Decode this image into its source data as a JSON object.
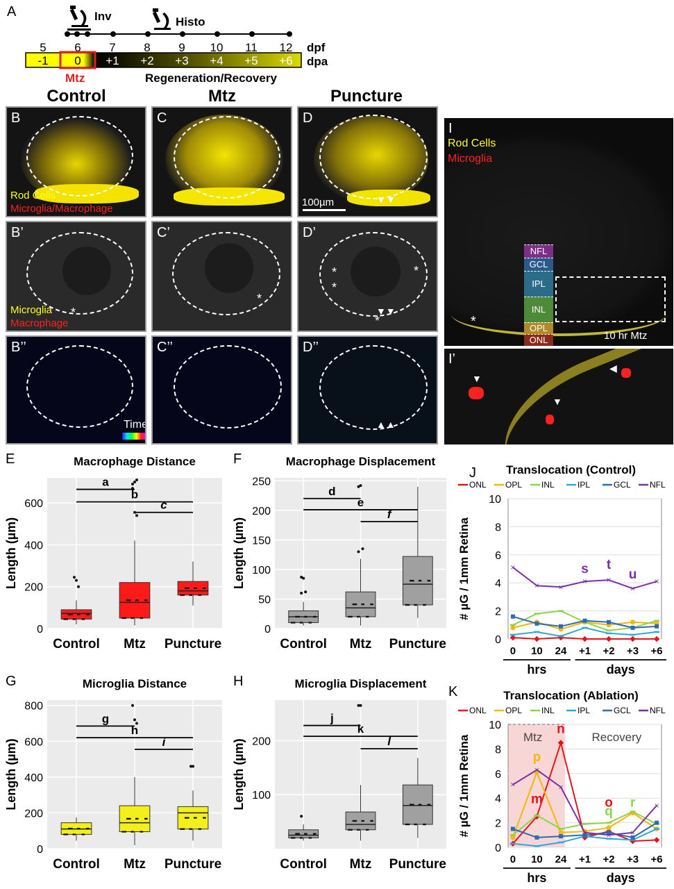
{
  "panels": {
    "A": "A",
    "B": "B",
    "C": "C",
    "D": "D",
    "Bp": "B’",
    "Cp": "C’",
    "Dp": "D’",
    "Bpp": "B’’",
    "Cpp": "C’’",
    "Dpp": "D’’",
    "E": "E",
    "F": "F",
    "G": "G",
    "H": "H",
    "I": "I",
    "Ip": "I’",
    "J": "J",
    "K": "K"
  },
  "timeline": {
    "inv_label": "Inv",
    "histo_label": "Histo",
    "dpf_label": "dpf",
    "dpa_label": "dpa",
    "dpf_values": [
      "5",
      "6",
      "7",
      "8",
      "9",
      "10",
      "11",
      "12"
    ],
    "dpa_values": [
      "-1",
      "0",
      "+1",
      "+2",
      "+3",
      "+4",
      "+5",
      "+6"
    ],
    "mtz_label": "Mtz",
    "regen_label": "Regeneration/Recovery",
    "colors": {
      "bright": "#ffff00",
      "dark": "#000000",
      "mtz_box": "#e02020"
    }
  },
  "columns": {
    "control": "Control",
    "mtz": "Mtz",
    "puncture": "Puncture"
  },
  "micro_text": {
    "rod_cells": "Rod Cells",
    "microglia_macrophage": "Microglia/Macrophage",
    "microglia": "Microglia",
    "macrophage": "Macrophage",
    "scalebar": "100µm",
    "time": "Time",
    "asterisk": "*"
  },
  "panel_I": {
    "rod": "Rod Cells",
    "microglia": "Microglia",
    "layers": [
      "NFL",
      "GCL",
      "IPL",
      "INL",
      "OPL",
      "ONL"
    ],
    "layer_colors": [
      "#7b2f86",
      "#2a5a8c",
      "#2b6c8a",
      "#4d8a3a",
      "#b08a2a",
      "#8a2a1a"
    ],
    "caption": "10 hr Mtz"
  },
  "chart_data": [
    {
      "id": "E",
      "type": "box",
      "title": "Macrophage  Distance",
      "ylabel": "Length (µm)",
      "categories": [
        "Control",
        "Mtz",
        "Puncture"
      ],
      "ylim": [
        0,
        720
      ],
      "yticks": [
        0,
        200,
        400,
        600
      ],
      "color": "#ff1a1a",
      "boxes": [
        {
          "min": 20,
          "q1": 45,
          "median": 72,
          "q3": 90,
          "max": 135
        },
        {
          "min": 15,
          "q1": 50,
          "median": 125,
          "q3": 220,
          "max": 420
        },
        {
          "min": 110,
          "q1": 160,
          "median": 180,
          "q3": 225,
          "max": 320
        }
      ],
      "outliers": [
        [
          245,
          230,
          200
        ],
        [
          690,
          700,
          710,
          670,
          555,
          540
        ],
        []
      ],
      "significance": [
        {
          "label": "a",
          "italic": false,
          "from": 0,
          "to": 1,
          "y": 665
        },
        {
          "label": "b",
          "italic": false,
          "from": 0,
          "to": 2,
          "y": 605
        },
        {
          "label": "c",
          "italic": true,
          "from": 1,
          "to": 2,
          "y": 555
        }
      ]
    },
    {
      "id": "F",
      "type": "box",
      "title": "Macrophage  Displacement",
      "ylabel": "Length (µm)",
      "categories": [
        "Control",
        "Mtz",
        "Puncture"
      ],
      "ylim": [
        0,
        255
      ],
      "yticks": [
        0,
        50,
        100,
        150,
        200,
        250
      ],
      "color": "#a0a0a0",
      "boxes": [
        {
          "min": 5,
          "q1": 10,
          "median": 20,
          "q3": 30,
          "max": 45
        },
        {
          "min": 5,
          "q1": 20,
          "median": 35,
          "q3": 62,
          "max": 118
        },
        {
          "min": 18,
          "q1": 40,
          "median": 75,
          "q3": 122,
          "max": 240
        }
      ],
      "outliers": [
        [
          87,
          85,
          62,
          60
        ],
        [
          240,
          242,
          135,
          130
        ],
        []
      ],
      "significance": [
        {
          "label": "d",
          "italic": false,
          "from": 0,
          "to": 1,
          "y": 220
        },
        {
          "label": "e",
          "italic": false,
          "from": 0,
          "to": 2,
          "y": 201
        },
        {
          "label": "f",
          "italic": true,
          "from": 1,
          "to": 2,
          "y": 181
        }
      ]
    },
    {
      "id": "G",
      "type": "box",
      "title": "Microglia  Distance",
      "ylabel": "Length (µm)",
      "categories": [
        "Control",
        "Mtz",
        "Puncture"
      ],
      "ylim": [
        0,
        830
      ],
      "yticks": [
        0,
        200,
        400,
        600,
        800
      ],
      "color": "#f2ef1a",
      "boxes": [
        {
          "min": 45,
          "q1": 80,
          "median": 110,
          "q3": 145,
          "max": 175
        },
        {
          "min": 20,
          "q1": 95,
          "median": 145,
          "q3": 240,
          "max": 400
        },
        {
          "min": 45,
          "q1": 110,
          "median": 200,
          "q3": 235,
          "max": 325
        }
      ],
      "outliers": [
        [],
        [
          800,
          720,
          700
        ],
        [
          460,
          460
        ]
      ],
      "significance": [
        {
          "label": "g",
          "italic": false,
          "from": 0,
          "to": 1,
          "y": 685
        },
        {
          "label": "h",
          "italic": false,
          "from": 0,
          "to": 2,
          "y": 620
        },
        {
          "label": "i",
          "italic": true,
          "from": 1,
          "to": 2,
          "y": 555
        }
      ]
    },
    {
      "id": "H",
      "type": "box",
      "title": "Microglia  Displacement",
      "ylabel": "Length (µm)",
      "categories": [
        "Control",
        "Mtz",
        "Puncture"
      ],
      "ylim": [
        0,
        275
      ],
      "yticks": [
        100,
        200
      ],
      "color": "#a0a0a0",
      "boxes": [
        {
          "min": 15,
          "q1": 20,
          "median": 25,
          "q3": 35,
          "max": 45
        },
        {
          "min": 15,
          "q1": 35,
          "median": 45,
          "q3": 68,
          "max": 118
        },
        {
          "min": 20,
          "q1": 45,
          "median": 80,
          "q3": 118,
          "max": 168
        }
      ],
      "outliers": [
        [
          60
        ],
        [
          265,
          265
        ],
        []
      ],
      "significance": [
        {
          "label": "j",
          "italic": false,
          "from": 0,
          "to": 1,
          "y": 228
        },
        {
          "label": "k",
          "italic": false,
          "from": 0,
          "to": 2,
          "y": 208
        },
        {
          "label": "l",
          "italic": true,
          "from": 1,
          "to": 2,
          "y": 185
        }
      ]
    },
    {
      "id": "J",
      "type": "line",
      "title": "Translocation (Control)",
      "ylabel": "# µG / 1mm Retina",
      "x": [
        "0",
        "10",
        "24",
        "+1",
        "+2",
        "+3",
        "+6"
      ],
      "xgroups": [
        {
          "label": "hrs",
          "from": 0,
          "to": 2
        },
        {
          "label": "days",
          "from": 3,
          "to": 6
        }
      ],
      "ylim": [
        0,
        10
      ],
      "yticks": [
        0,
        2,
        4,
        6,
        8,
        10
      ],
      "series": [
        {
          "name": "ONL",
          "color": "#e8141a",
          "marker": "diamond",
          "values": [
            0.1,
            0.0,
            0.1,
            0.0,
            0.0,
            0.0,
            0.0
          ]
        },
        {
          "name": "OPL",
          "color": "#f5b800",
          "marker": "circle",
          "values": [
            0.8,
            1.2,
            0.7,
            1.2,
            1.0,
            1.2,
            1.1
          ]
        },
        {
          "name": "INL",
          "color": "#8ed44a",
          "marker": "dash",
          "values": [
            1.0,
            1.8,
            2.0,
            1.2,
            0.6,
            0.8,
            1.3
          ]
        },
        {
          "name": "IPL",
          "color": "#2aa8e0",
          "marker": "dash",
          "values": [
            0.3,
            0.5,
            0.2,
            0.8,
            0.4,
            0.3,
            0.5
          ]
        },
        {
          "name": "GCL",
          "color": "#2a6ab8",
          "marker": "square",
          "values": [
            1.6,
            1.1,
            0.9,
            1.3,
            1.2,
            0.8,
            0.9
          ]
        },
        {
          "name": "NFL",
          "color": "#7a2fa8",
          "marker": "cross",
          "values": [
            5.1,
            3.8,
            3.7,
            4.1,
            4.2,
            3.6,
            4.1
          ]
        }
      ],
      "annotations": [
        {
          "text": "s",
          "color": "#7a2fa8",
          "x": 3,
          "y": 4.7
        },
        {
          "text": "t",
          "color": "#7a2fa8",
          "x": 4,
          "y": 5.0
        },
        {
          "text": "u",
          "color": "#7a2fa8",
          "x": 5,
          "y": 4.3
        }
      ]
    },
    {
      "id": "K",
      "type": "line",
      "title": "Translocation (Ablation)",
      "ylabel": "# µG / 1mm Retina",
      "x": [
        "0",
        "10",
        "24",
        "+1",
        "+2",
        "+3",
        "+6"
      ],
      "xgroups": [
        {
          "label": "hrs",
          "from": 0,
          "to": 2
        },
        {
          "label": "days",
          "from": 3,
          "to": 6
        }
      ],
      "ylim": [
        0,
        10
      ],
      "yticks": [
        0,
        2,
        4,
        6,
        8,
        10
      ],
      "shade_label": "Mtz",
      "recovery_label": "Recovery",
      "series": [
        {
          "name": "ONL",
          "color": "#e8141a",
          "marker": "diamond",
          "values": [
            0.3,
            2.5,
            8.5,
            0.8,
            1.3,
            0.5,
            0.6
          ]
        },
        {
          "name": "OPL",
          "color": "#f5b800",
          "marker": "circle",
          "values": [
            0.8,
            6.1,
            1.2,
            1.3,
            1.6,
            2.8,
            1.5
          ]
        },
        {
          "name": "INL",
          "color": "#8ed44a",
          "marker": "dash",
          "values": [
            1.0,
            2.6,
            1.5,
            1.9,
            2.0,
            2.9,
            1.9
          ]
        },
        {
          "name": "IPL",
          "color": "#2aa8e0",
          "marker": "dash",
          "values": [
            0.3,
            0.1,
            0.4,
            0.9,
            0.7,
            0.6,
            1.5
          ]
        },
        {
          "name": "GCL",
          "color": "#2a6ab8",
          "marker": "square",
          "values": [
            1.5,
            0.8,
            0.9,
            1.0,
            1.2,
            0.8,
            2.0
          ]
        },
        {
          "name": "NFL",
          "color": "#7a2fa8",
          "marker": "cross",
          "values": [
            5.1,
            6.3,
            4.9,
            1.2,
            1.0,
            1.2,
            3.4
          ]
        }
      ],
      "annotations": [
        {
          "text": "p",
          "color": "#f5b800",
          "x": 1,
          "y": 7.0
        },
        {
          "text": "m",
          "color": "#e8141a",
          "x": 1,
          "y": 3.6
        },
        {
          "text": "n",
          "color": "#e8141a",
          "x": 2,
          "y": 9.3
        },
        {
          "text": "o",
          "color": "#e8141a",
          "x": 4,
          "y": 3.3
        },
        {
          "text": "q",
          "color": "#8ed44a",
          "x": 4,
          "y": 2.6
        },
        {
          "text": "r",
          "color": "#8ed44a",
          "x": 5,
          "y": 3.3
        }
      ]
    }
  ]
}
